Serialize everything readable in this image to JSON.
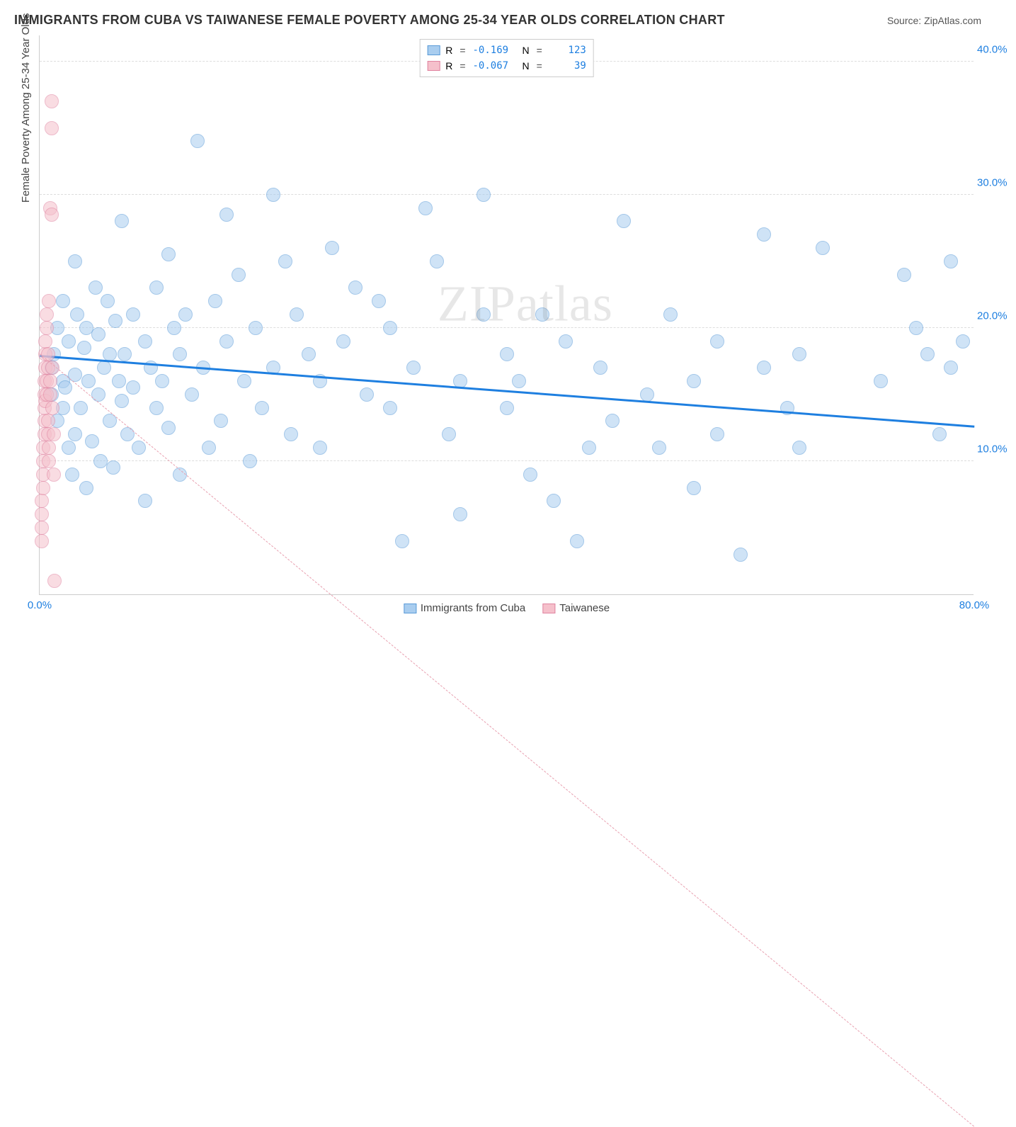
{
  "title": "IMMIGRANTS FROM CUBA VS TAIWANESE FEMALE POVERTY AMONG 25-34 YEAR OLDS CORRELATION CHART",
  "source_label": "Source: ZipAtlas.com",
  "watermark": "ZIPatlas",
  "y_axis_label": "Female Poverty Among 25-34 Year Olds",
  "chart": {
    "type": "scatter",
    "xlim": [
      0,
      80
    ],
    "ylim": [
      0,
      42
    ],
    "x_ticks": [
      {
        "v": 0,
        "label": "0.0%",
        "color": "#1e7fe0"
      },
      {
        "v": 80,
        "label": "80.0%",
        "color": "#1e7fe0"
      }
    ],
    "y_ticks": [
      {
        "v": 10,
        "label": "10.0%",
        "color": "#1e7fe0"
      },
      {
        "v": 20,
        "label": "20.0%",
        "color": "#1e7fe0"
      },
      {
        "v": 30,
        "label": "30.0%",
        "color": "#1e7fe0"
      },
      {
        "v": 40,
        "label": "40.0%",
        "color": "#1e7fe0"
      }
    ],
    "grid_color": "#dddddd",
    "background_color": "#ffffff",
    "point_radius": 10,
    "point_opacity": 0.55,
    "series": [
      {
        "name": "Immigrants from Cuba",
        "fill": "#a9cdef",
        "stroke": "#5a9bd8",
        "r_value": "-0.169",
        "n_value": "123",
        "trend": {
          "y_at_x0": 17.8,
          "y_at_xmax": 12.5,
          "color": "#1e7fe0",
          "width": 3,
          "dash": false
        },
        "points": [
          [
            1,
            15
          ],
          [
            1,
            17
          ],
          [
            1.2,
            18
          ],
          [
            1.5,
            13
          ],
          [
            1.5,
            20
          ],
          [
            2,
            16
          ],
          [
            2,
            14
          ],
          [
            2,
            22
          ],
          [
            2.2,
            15.5
          ],
          [
            2.5,
            11
          ],
          [
            2.5,
            19
          ],
          [
            2.8,
            9
          ],
          [
            3,
            16.5
          ],
          [
            3,
            25
          ],
          [
            3,
            12
          ],
          [
            3.2,
            21
          ],
          [
            3.5,
            14
          ],
          [
            3.8,
            18.5
          ],
          [
            4,
            8
          ],
          [
            4,
            20
          ],
          [
            4.2,
            16
          ],
          [
            4.5,
            11.5
          ],
          [
            4.8,
            23
          ],
          [
            5,
            19.5
          ],
          [
            5,
            15
          ],
          [
            5.2,
            10
          ],
          [
            5.5,
            17
          ],
          [
            5.8,
            22
          ],
          [
            6,
            18
          ],
          [
            6,
            13
          ],
          [
            6.3,
            9.5
          ],
          [
            6.5,
            20.5
          ],
          [
            6.8,
            16
          ],
          [
            7,
            28
          ],
          [
            7,
            14.5
          ],
          [
            7.3,
            18
          ],
          [
            7.5,
            12
          ],
          [
            8,
            21
          ],
          [
            8,
            15.5
          ],
          [
            8.5,
            11
          ],
          [
            9,
            19
          ],
          [
            9,
            7
          ],
          [
            9.5,
            17
          ],
          [
            10,
            23
          ],
          [
            10,
            14
          ],
          [
            10.5,
            16
          ],
          [
            11,
            25.5
          ],
          [
            11,
            12.5
          ],
          [
            11.5,
            20
          ],
          [
            12,
            18
          ],
          [
            12,
            9
          ],
          [
            12.5,
            21
          ],
          [
            13,
            15
          ],
          [
            13.5,
            34
          ],
          [
            14,
            17
          ],
          [
            14.5,
            11
          ],
          [
            15,
            22
          ],
          [
            15.5,
            13
          ],
          [
            16,
            28.5
          ],
          [
            16,
            19
          ],
          [
            17,
            24
          ],
          [
            17.5,
            16
          ],
          [
            18,
            10
          ],
          [
            18.5,
            20
          ],
          [
            19,
            14
          ],
          [
            20,
            30
          ],
          [
            20,
            17
          ],
          [
            21,
            25
          ],
          [
            21.5,
            12
          ],
          [
            22,
            21
          ],
          [
            23,
            18
          ],
          [
            24,
            11
          ],
          [
            24,
            16
          ],
          [
            25,
            26
          ],
          [
            26,
            19
          ],
          [
            27,
            23
          ],
          [
            28,
            15
          ],
          [
            29,
            22
          ],
          [
            30,
            20
          ],
          [
            30,
            14
          ],
          [
            31,
            4
          ],
          [
            32,
            17
          ],
          [
            33,
            29
          ],
          [
            34,
            25
          ],
          [
            35,
            12
          ],
          [
            36,
            6
          ],
          [
            36,
            16
          ],
          [
            38,
            30
          ],
          [
            38,
            21
          ],
          [
            40,
            18
          ],
          [
            40,
            14
          ],
          [
            41,
            16
          ],
          [
            42,
            9
          ],
          [
            43,
            21
          ],
          [
            44,
            7
          ],
          [
            45,
            19
          ],
          [
            46,
            4
          ],
          [
            47,
            11
          ],
          [
            48,
            17
          ],
          [
            49,
            13
          ],
          [
            50,
            28
          ],
          [
            52,
            15
          ],
          [
            53,
            11
          ],
          [
            54,
            21
          ],
          [
            56,
            8
          ],
          [
            56,
            16
          ],
          [
            58,
            19
          ],
          [
            58,
            12
          ],
          [
            60,
            3
          ],
          [
            62,
            17
          ],
          [
            62,
            27
          ],
          [
            64,
            14
          ],
          [
            65,
            18
          ],
          [
            65,
            11
          ],
          [
            67,
            26
          ],
          [
            72,
            16
          ],
          [
            74,
            24
          ],
          [
            75,
            20
          ],
          [
            76,
            18
          ],
          [
            77,
            12
          ],
          [
            78,
            17
          ],
          [
            78,
            25
          ],
          [
            79,
            19
          ]
        ]
      },
      {
        "name": "Taiwanese",
        "fill": "#f5c0cb",
        "stroke": "#e083a0",
        "r_value": "-0.067",
        "n_value": "39",
        "trend": {
          "y_at_x0": 18.0,
          "y_at_xmax": -40,
          "color": "#e8a0b0",
          "width": 1,
          "dash": true
        },
        "points": [
          [
            0.2,
            5
          ],
          [
            0.2,
            6
          ],
          [
            0.2,
            4
          ],
          [
            0.2,
            7
          ],
          [
            0.3,
            8
          ],
          [
            0.3,
            9
          ],
          [
            0.3,
            10
          ],
          [
            0.3,
            11
          ],
          [
            0.4,
            12
          ],
          [
            0.4,
            13
          ],
          [
            0.4,
            15
          ],
          [
            0.4,
            14
          ],
          [
            0.4,
            16
          ],
          [
            0.5,
            17
          ],
          [
            0.5,
            18
          ],
          [
            0.5,
            19
          ],
          [
            0.5,
            14.5
          ],
          [
            0.6,
            16
          ],
          [
            0.6,
            15
          ],
          [
            0.6,
            20
          ],
          [
            0.6,
            21
          ],
          [
            0.7,
            18
          ],
          [
            0.7,
            17
          ],
          [
            0.7,
            13
          ],
          [
            0.7,
            12
          ],
          [
            0.8,
            11
          ],
          [
            0.8,
            10
          ],
          [
            0.8,
            22
          ],
          [
            0.9,
            15
          ],
          [
            0.9,
            16
          ],
          [
            0.9,
            29
          ],
          [
            1,
            28.5
          ],
          [
            1,
            35
          ],
          [
            1,
            37
          ],
          [
            1.1,
            14
          ],
          [
            1.1,
            17
          ],
          [
            1.2,
            12
          ],
          [
            1.2,
            9
          ],
          [
            1.3,
            1
          ]
        ]
      }
    ]
  },
  "legend_bottom": [
    {
      "label": "Immigrants from Cuba",
      "fill": "#a9cdef",
      "stroke": "#5a9bd8"
    },
    {
      "label": "Taiwanese",
      "fill": "#f5c0cb",
      "stroke": "#e083a0"
    }
  ]
}
